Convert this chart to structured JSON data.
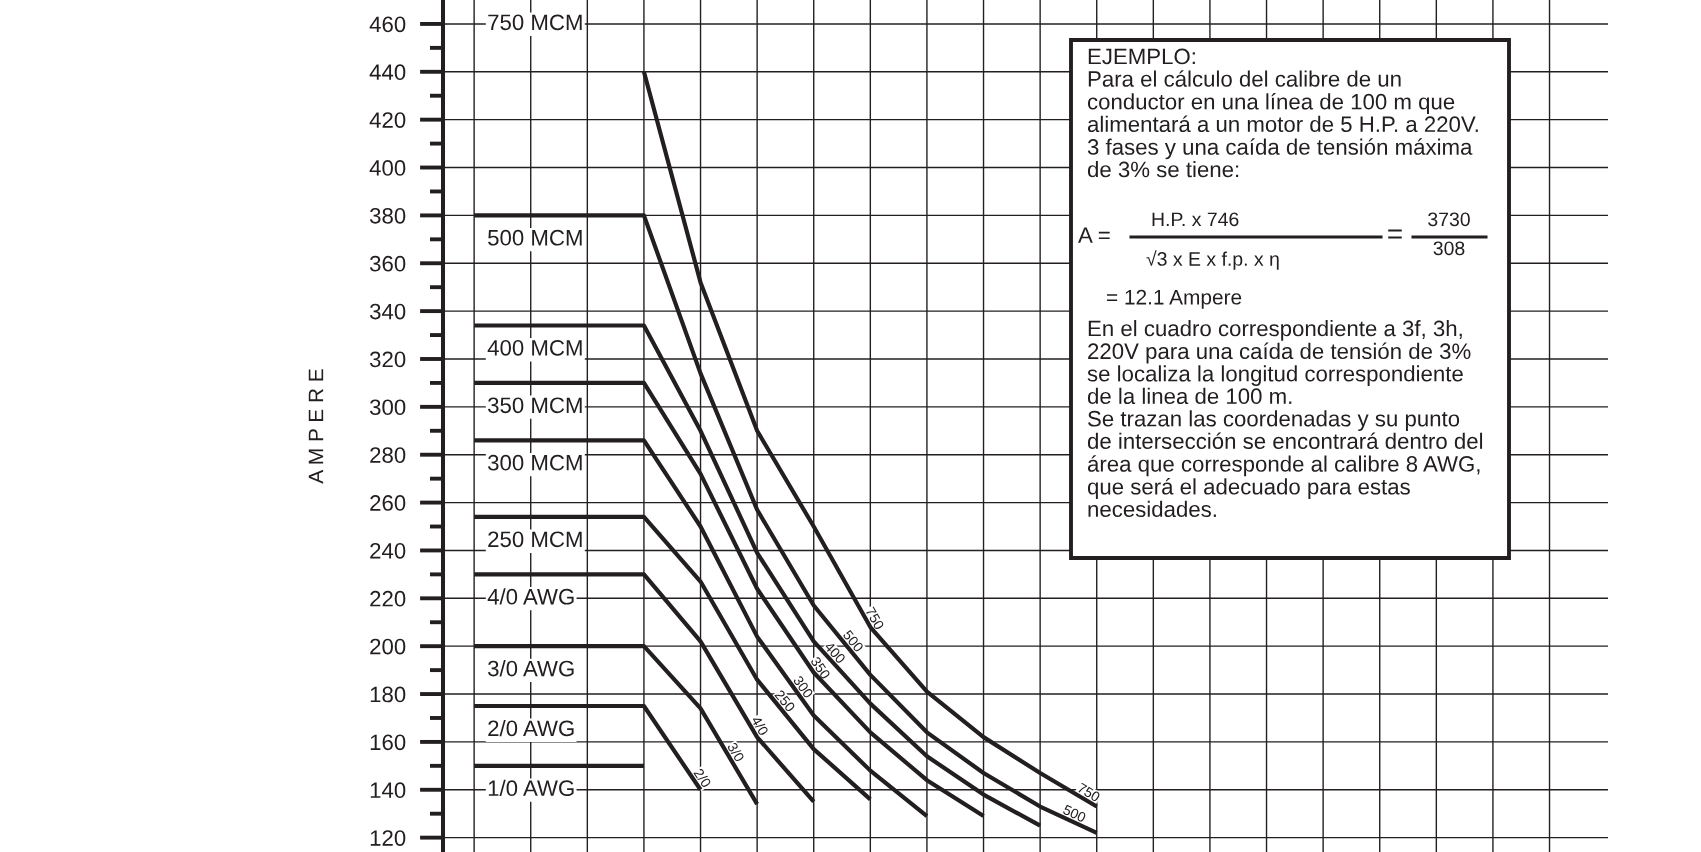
{
  "chart_data": {
    "type": "line",
    "ylabel": "A M P E R E",
    "categories": [
      null,
      null,
      null,
      null,
      null,
      null,
      null,
      null,
      null,
      null,
      null,
      null
    ],
    "ylim": [
      114,
      470
    ],
    "yticks": [
      120,
      {
        "value": 130,
        "label": null
      },
      140,
      {
        "value": 150,
        "label": null
      },
      160,
      {
        "value": 170,
        "label": null
      },
      180,
      {
        "value": 190,
        "label": null
      },
      200,
      {
        "value": 210,
        "label": null
      },
      220,
      {
        "value": 230,
        "label": null
      },
      240,
      {
        "value": 250,
        "label": null
      },
      260,
      {
        "value": 270,
        "label": null
      },
      280,
      {
        "value": 290,
        "label": null
      },
      300,
      {
        "value": 310,
        "label": null
      },
      320,
      {
        "value": 330,
        "label": null
      },
      340,
      {
        "value": 350,
        "label": null
      },
      360,
      {
        "value": 370,
        "label": null
      },
      380,
      {
        "value": 390,
        "label": null
      },
      400,
      {
        "value": 410,
        "label": null
      },
      420,
      {
        "value": 430,
        "label": null
      },
      440,
      {
        "value": 450,
        "label": null
      },
      460
    ],
    "grid": true,
    "line_style": "solid",
    "legend": "left",
    "series": [
      {
        "name": "750 MCM",
        "color": "#231f20",
        "values": [
          null,
          null,
          null,
          440,
          352,
          290,
          250,
          208,
          181,
          162,
          147,
          133
        ]
      },
      {
        "name": "500 MCM",
        "color": "#231f20",
        "values": [
          380,
          380,
          380,
          380,
          314,
          257,
          217,
          188,
          164,
          147,
          133,
          122
        ]
      },
      {
        "name": "400 MCM",
        "color": "#231f20",
        "values": [
          334,
          334,
          334,
          334,
          290,
          239,
          202,
          176,
          154,
          138,
          125,
          null
        ]
      },
      {
        "name": "350 MCM",
        "color": "#231f20",
        "values": [
          310,
          310,
          310,
          310,
          272,
          224,
          189,
          164,
          144,
          129,
          null,
          null
        ]
      },
      {
        "name": "300 MCM",
        "color": "#231f20",
        "values": [
          286,
          286,
          286,
          286,
          250,
          204,
          171,
          148,
          129,
          null,
          null,
          null
        ]
      },
      {
        "name": "250 MCM",
        "color": "#231f20",
        "values": [
          254,
          254,
          254,
          254,
          227,
          186,
          157,
          136,
          null,
          null,
          null,
          null
        ]
      },
      {
        "name": "4/0 AWG",
        "color": "#231f20",
        "values": [
          230,
          230,
          230,
          230,
          202,
          162,
          135,
          null,
          null,
          null,
          null,
          null
        ]
      },
      {
        "name": "3/0 AWG",
        "color": "#231f20",
        "values": [
          200,
          200,
          200,
          200,
          174,
          134,
          null,
          null,
          null,
          null,
          null,
          null
        ]
      },
      {
        "name": "2/0 AWG",
        "color": "#231f20",
        "values": [
          175,
          175,
          175,
          175,
          140,
          null,
          null,
          null,
          null,
          null,
          null,
          null
        ]
      },
      {
        "name": "1/0 AWG",
        "color": "#231f20",
        "values": [
          150,
          150,
          150,
          150,
          null,
          null,
          null,
          null,
          null,
          null,
          null,
          null
        ]
      }
    ],
    "annotations": [
      "EJEMPLO:\nPara el cálculo del calibre de un\nconductor en una línea de 100 m que\nalimentará a un motor de 5 H.P. a 220V.\n3 fases y una caída de tensión máxima\nde 3% se tiene:",
      "A =",
      "H.P. x 746",
      "√3 x E x f.p. x η",
      "=",
      "3730",
      "308",
      "= 12.1 Ampere",
      "En el cuadro correspondiente a 3f, 3h,\n220V para una caída de tensión de 3%\nse localiza la longitud correspondiente\nde la linea de 100 m.\nSe trazan las coordenadas y su punto\nde intersección se encontrará dentro del\nárea que corresponde al calibre 8 AWG,\nque será el adecuado para estas\nnecesidades.",
      {
        "text": "750",
        "y": 210
      },
      {
        "text": "500",
        "y": 200
      },
      {
        "text": "400",
        "y": 195
      },
      {
        "text": "350",
        "y": 189
      },
      {
        "text": "300",
        "y": 181
      },
      {
        "text": "250",
        "y": 175
      },
      {
        "text": "4/0",
        "y": 165
      },
      {
        "text": "3/0",
        "y": 154
      },
      {
        "text": "2/0",
        "y": 143
      },
      {
        "text": "750",
        "y": 136
      },
      {
        "text": "500",
        "y": 127
      }
    ]
  }
}
